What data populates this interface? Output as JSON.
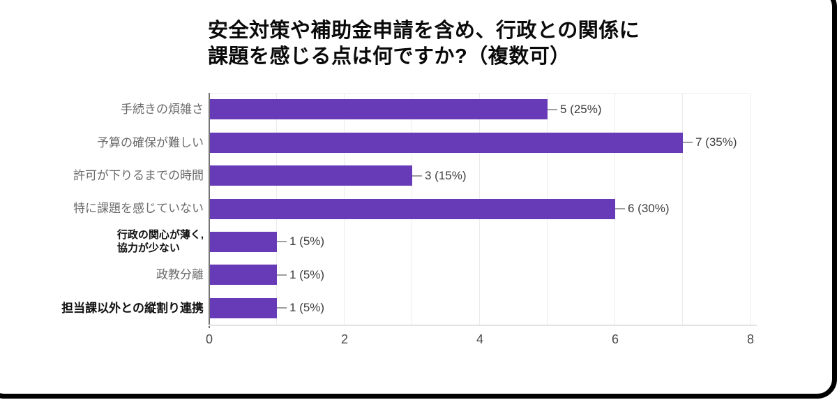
{
  "chart_data": {
    "type": "bar",
    "orientation": "horizontal",
    "title": "安全対策や補助金申請を含め、行政との関係に課題を感じる点は何ですか?（複数可）",
    "title_lines": [
      "安全対策や補助金申請を含め、行政との関係に",
      "課題を感じる点は何ですか?（複数可）"
    ],
    "categories": [
      "手続きの煩雑さ",
      "予算の確保が難しい",
      "許可が下りるまでの時間",
      "特に課題を感じていない",
      "行政の関心が薄く,\n協力が少ない",
      "政教分離",
      "担当課以外との縦割り連携"
    ],
    "values": [
      5,
      7,
      3,
      6,
      1,
      1,
      1
    ],
    "value_labels": [
      "5 (25%)",
      "7 (35%)",
      "3 (15%)",
      "6 (30%)",
      "1 (5%)",
      "1 (5%)",
      "1 (5%)"
    ],
    "emphasized_categories": [
      false,
      false,
      false,
      false,
      true,
      false,
      true
    ],
    "xticks": [
      0,
      2,
      4,
      6,
      8
    ],
    "xlim": [
      0,
      8
    ],
    "grid": true,
    "legend": "none",
    "bar_color": "#673ab7",
    "gridline_color": "#ebebeb",
    "axis_line_color": "#757575",
    "category_label_color": "#6b6b6b",
    "emphasized_label_color": "#111111",
    "value_label_color": "#3d3d3d",
    "tick_label_color": "#4a4a4a",
    "frame_border_color": "#000000",
    "background_color": "#ffffff"
  }
}
